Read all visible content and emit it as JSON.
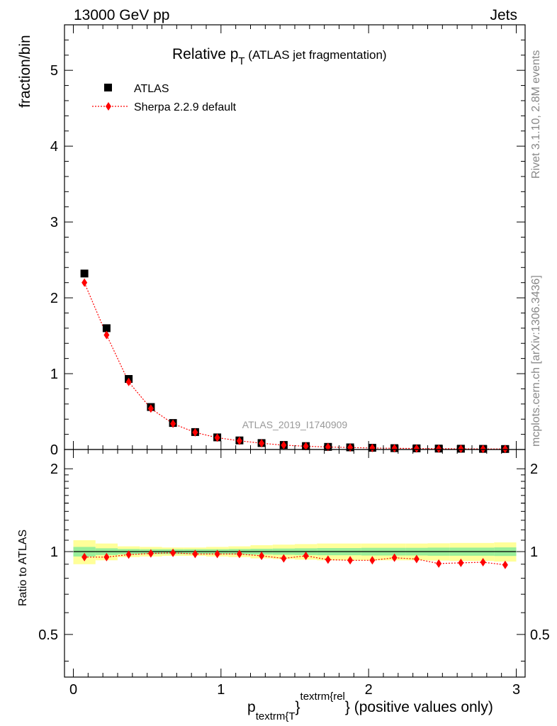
{
  "header": {
    "left": "13000 GeV pp",
    "right": "Jets"
  },
  "side_labels": {
    "rivet": "Rivet 3.1.10,  2.8M events",
    "mcplots": "mcplots.cern.ch [arXiv:1306.3436]"
  },
  "watermark": "ATLAS_2019_I1740909",
  "colors": {
    "data": "#000000",
    "mc": "#ff0000",
    "band_inner": "#99ee99",
    "band_outer": "#ffff99",
    "gray_text": "#888888"
  },
  "chart_data": [
    {
      "type": "scatter",
      "panel": "main",
      "title_main": "Relative p",
      "title_sub": "T",
      "title_rest": " (ATLAS jet fragmentation)",
      "ylabel": "fraction/bin",
      "xlim": [
        -0.06,
        3.06
      ],
      "ylim": [
        0,
        5.6
      ],
      "yticks": [
        0,
        1,
        2,
        3,
        4,
        5
      ],
      "legend_position": "top-left",
      "x": [
        0.075,
        0.225,
        0.375,
        0.525,
        0.675,
        0.825,
        0.975,
        1.125,
        1.275,
        1.425,
        1.575,
        1.725,
        1.875,
        2.025,
        2.175,
        2.325,
        2.475,
        2.625,
        2.775,
        2.925
      ],
      "series": [
        {
          "name": "ATLAS",
          "marker": "square",
          "values": [
            2.32,
            1.6,
            0.93,
            0.56,
            0.35,
            0.23,
            0.16,
            0.12,
            0.085,
            0.06,
            0.045,
            0.035,
            0.028,
            0.022,
            0.018,
            0.015,
            0.012,
            0.01,
            0.008,
            0.007
          ]
        },
        {
          "name": "Sherpa 2.2.9 default",
          "marker": "diamond",
          "line": "dotted",
          "values": [
            2.2,
            1.51,
            0.89,
            0.54,
            0.34,
            0.225,
            0.155,
            0.115,
            0.082,
            0.057,
            0.043,
            0.033,
            0.026,
            0.02,
            0.016,
            0.013,
            0.011,
            0.009,
            0.0075,
            0.0065
          ]
        }
      ]
    },
    {
      "type": "scatter",
      "panel": "ratio",
      "ylabel": "Ratio to ATLAS",
      "xlabel_main": "p",
      "xlabel_sub": "textrm{T",
      "xlabel_close": "}",
      "xlabel_sup": "textrm{rel",
      "xlabel_rest": "} (positive values only)",
      "xlim": [
        -0.06,
        3.06
      ],
      "ylim": [
        0.35,
        2.35
      ],
      "yscale": "log",
      "yticks": [
        0.5,
        1,
        2
      ],
      "ytick_labels": [
        "0.5",
        "1",
        "2"
      ],
      "xticks": [
        0,
        1,
        2,
        3
      ],
      "xtick_labels": [
        "0",
        "1",
        "2",
        "3"
      ],
      "reference_line": 1,
      "bins": [
        0,
        0.15,
        0.3,
        0.45,
        0.6,
        0.75,
        0.9,
        1.05,
        1.2,
        1.35,
        1.5,
        1.65,
        1.8,
        1.95,
        2.1,
        2.25,
        2.4,
        2.55,
        2.7,
        2.85,
        3.0
      ],
      "band_inner": [
        0.04,
        0.028,
        0.022,
        0.02,
        0.02,
        0.02,
        0.02,
        0.022,
        0.024,
        0.026,
        0.028,
        0.03,
        0.03,
        0.032,
        0.032,
        0.032,
        0.034,
        0.034,
        0.034,
        0.036
      ],
      "band_outer": [
        0.1,
        0.07,
        0.045,
        0.04,
        0.035,
        0.035,
        0.04,
        0.045,
        0.055,
        0.06,
        0.065,
        0.07,
        0.07,
        0.07,
        0.07,
        0.07,
        0.072,
        0.075,
        0.075,
        0.08
      ],
      "x": [
        0.075,
        0.225,
        0.375,
        0.525,
        0.675,
        0.825,
        0.975,
        1.125,
        1.275,
        1.425,
        1.575,
        1.725,
        1.875,
        2.025,
        2.175,
        2.325,
        2.475,
        2.625,
        2.775,
        2.925
      ],
      "series": [
        {
          "name": "Sherpa 2.2.9 default",
          "values": [
            0.955,
            0.955,
            0.975,
            0.985,
            0.99,
            0.98,
            0.98,
            0.98,
            0.965,
            0.945,
            0.965,
            0.935,
            0.93,
            0.93,
            0.95,
            0.94,
            0.905,
            0.91,
            0.915,
            0.895
          ],
          "errors": [
            0.01,
            0.01,
            0.01,
            0.01,
            0.01,
            0.01,
            0.01,
            0.01,
            0.01,
            0.01,
            0.01,
            0.012,
            0.012,
            0.012,
            0.012,
            0.012,
            0.012,
            0.014,
            0.014,
            0.02
          ]
        }
      ]
    }
  ]
}
